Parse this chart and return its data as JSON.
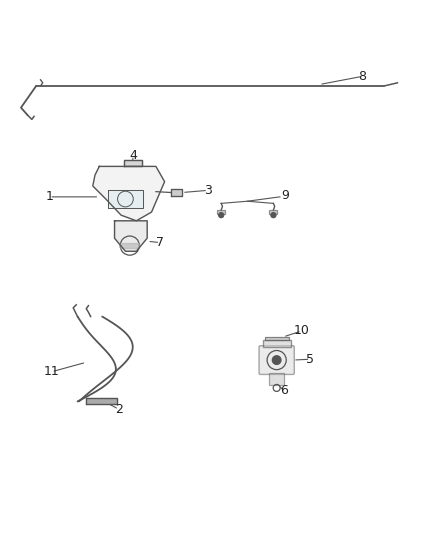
{
  "background_color": "#ffffff",
  "line_color": "#555555",
  "label_color": "#222222",
  "font_size": 9
}
